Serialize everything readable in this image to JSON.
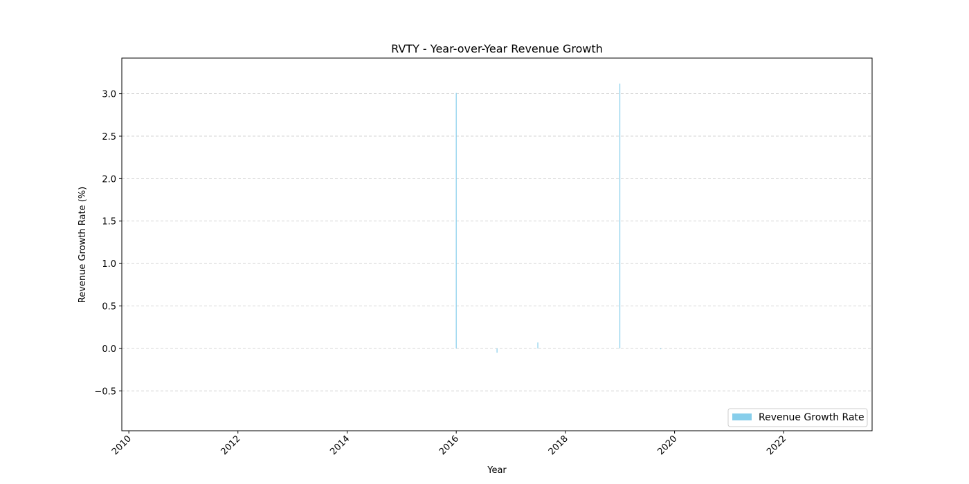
{
  "chart_data": {
    "type": "bar",
    "title": "RVTY - Year-over-Year Revenue Growth",
    "xlabel": "Year",
    "ylabel": "Revenue Growth Rate (%)",
    "x_axis": "date",
    "xlim": [
      "2009-11-15",
      "2023-08-15"
    ],
    "ylim": [
      -0.97,
      3.42
    ],
    "xticks": [
      "2010",
      "2012",
      "2014",
      "2016",
      "2018",
      "2020",
      "2022"
    ],
    "yticks": [
      -0.5,
      0.0,
      0.5,
      1.0,
      1.5,
      2.0,
      2.5,
      3.0
    ],
    "ytick_labels": [
      "−0.5",
      "0.0",
      "0.5",
      "1.0",
      "1.5",
      "2.0",
      "2.5",
      "3.0"
    ],
    "grid": "y",
    "legend": "bottom-right",
    "series": [
      {
        "name": "Revenue Growth Rate",
        "color": "#87ceeb",
        "points": [
          {
            "x": "2016-01-01",
            "y": 3.01
          },
          {
            "x": "2016-09-30",
            "y": -0.05
          },
          {
            "x": "2017-06-30",
            "y": 0.07
          },
          {
            "x": "2018-12-31",
            "y": 3.12
          },
          {
            "x": "2019-09-30",
            "y": -0.01
          }
        ]
      }
    ]
  }
}
